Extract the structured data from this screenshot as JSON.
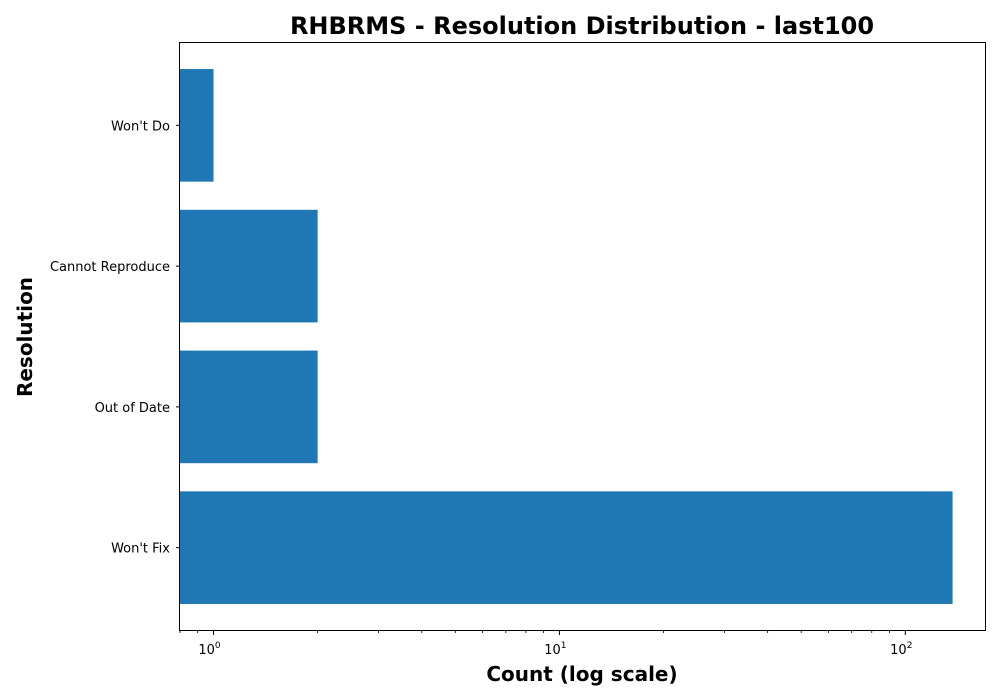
{
  "chart_data": {
    "type": "bar",
    "orientation": "horizontal",
    "title": "RHBRMS - Resolution Distribution - last100",
    "xlabel": "Count (log scale)",
    "ylabel": "Resolution",
    "xscale": "log",
    "xlim": [
      0.8,
      170
    ],
    "x_ticks": [
      {
        "value": 1,
        "base": "10",
        "exp": "0"
      },
      {
        "value": 10,
        "base": "10",
        "exp": "1"
      },
      {
        "value": 100,
        "base": "10",
        "exp": "2"
      }
    ],
    "categories": [
      "Won't Do",
      "Cannot Reproduce",
      "Out of Date",
      "Won't Fix"
    ],
    "values": [
      1,
      2,
      2,
      137
    ],
    "bar_color": "#1f77b4",
    "grid": false
  }
}
